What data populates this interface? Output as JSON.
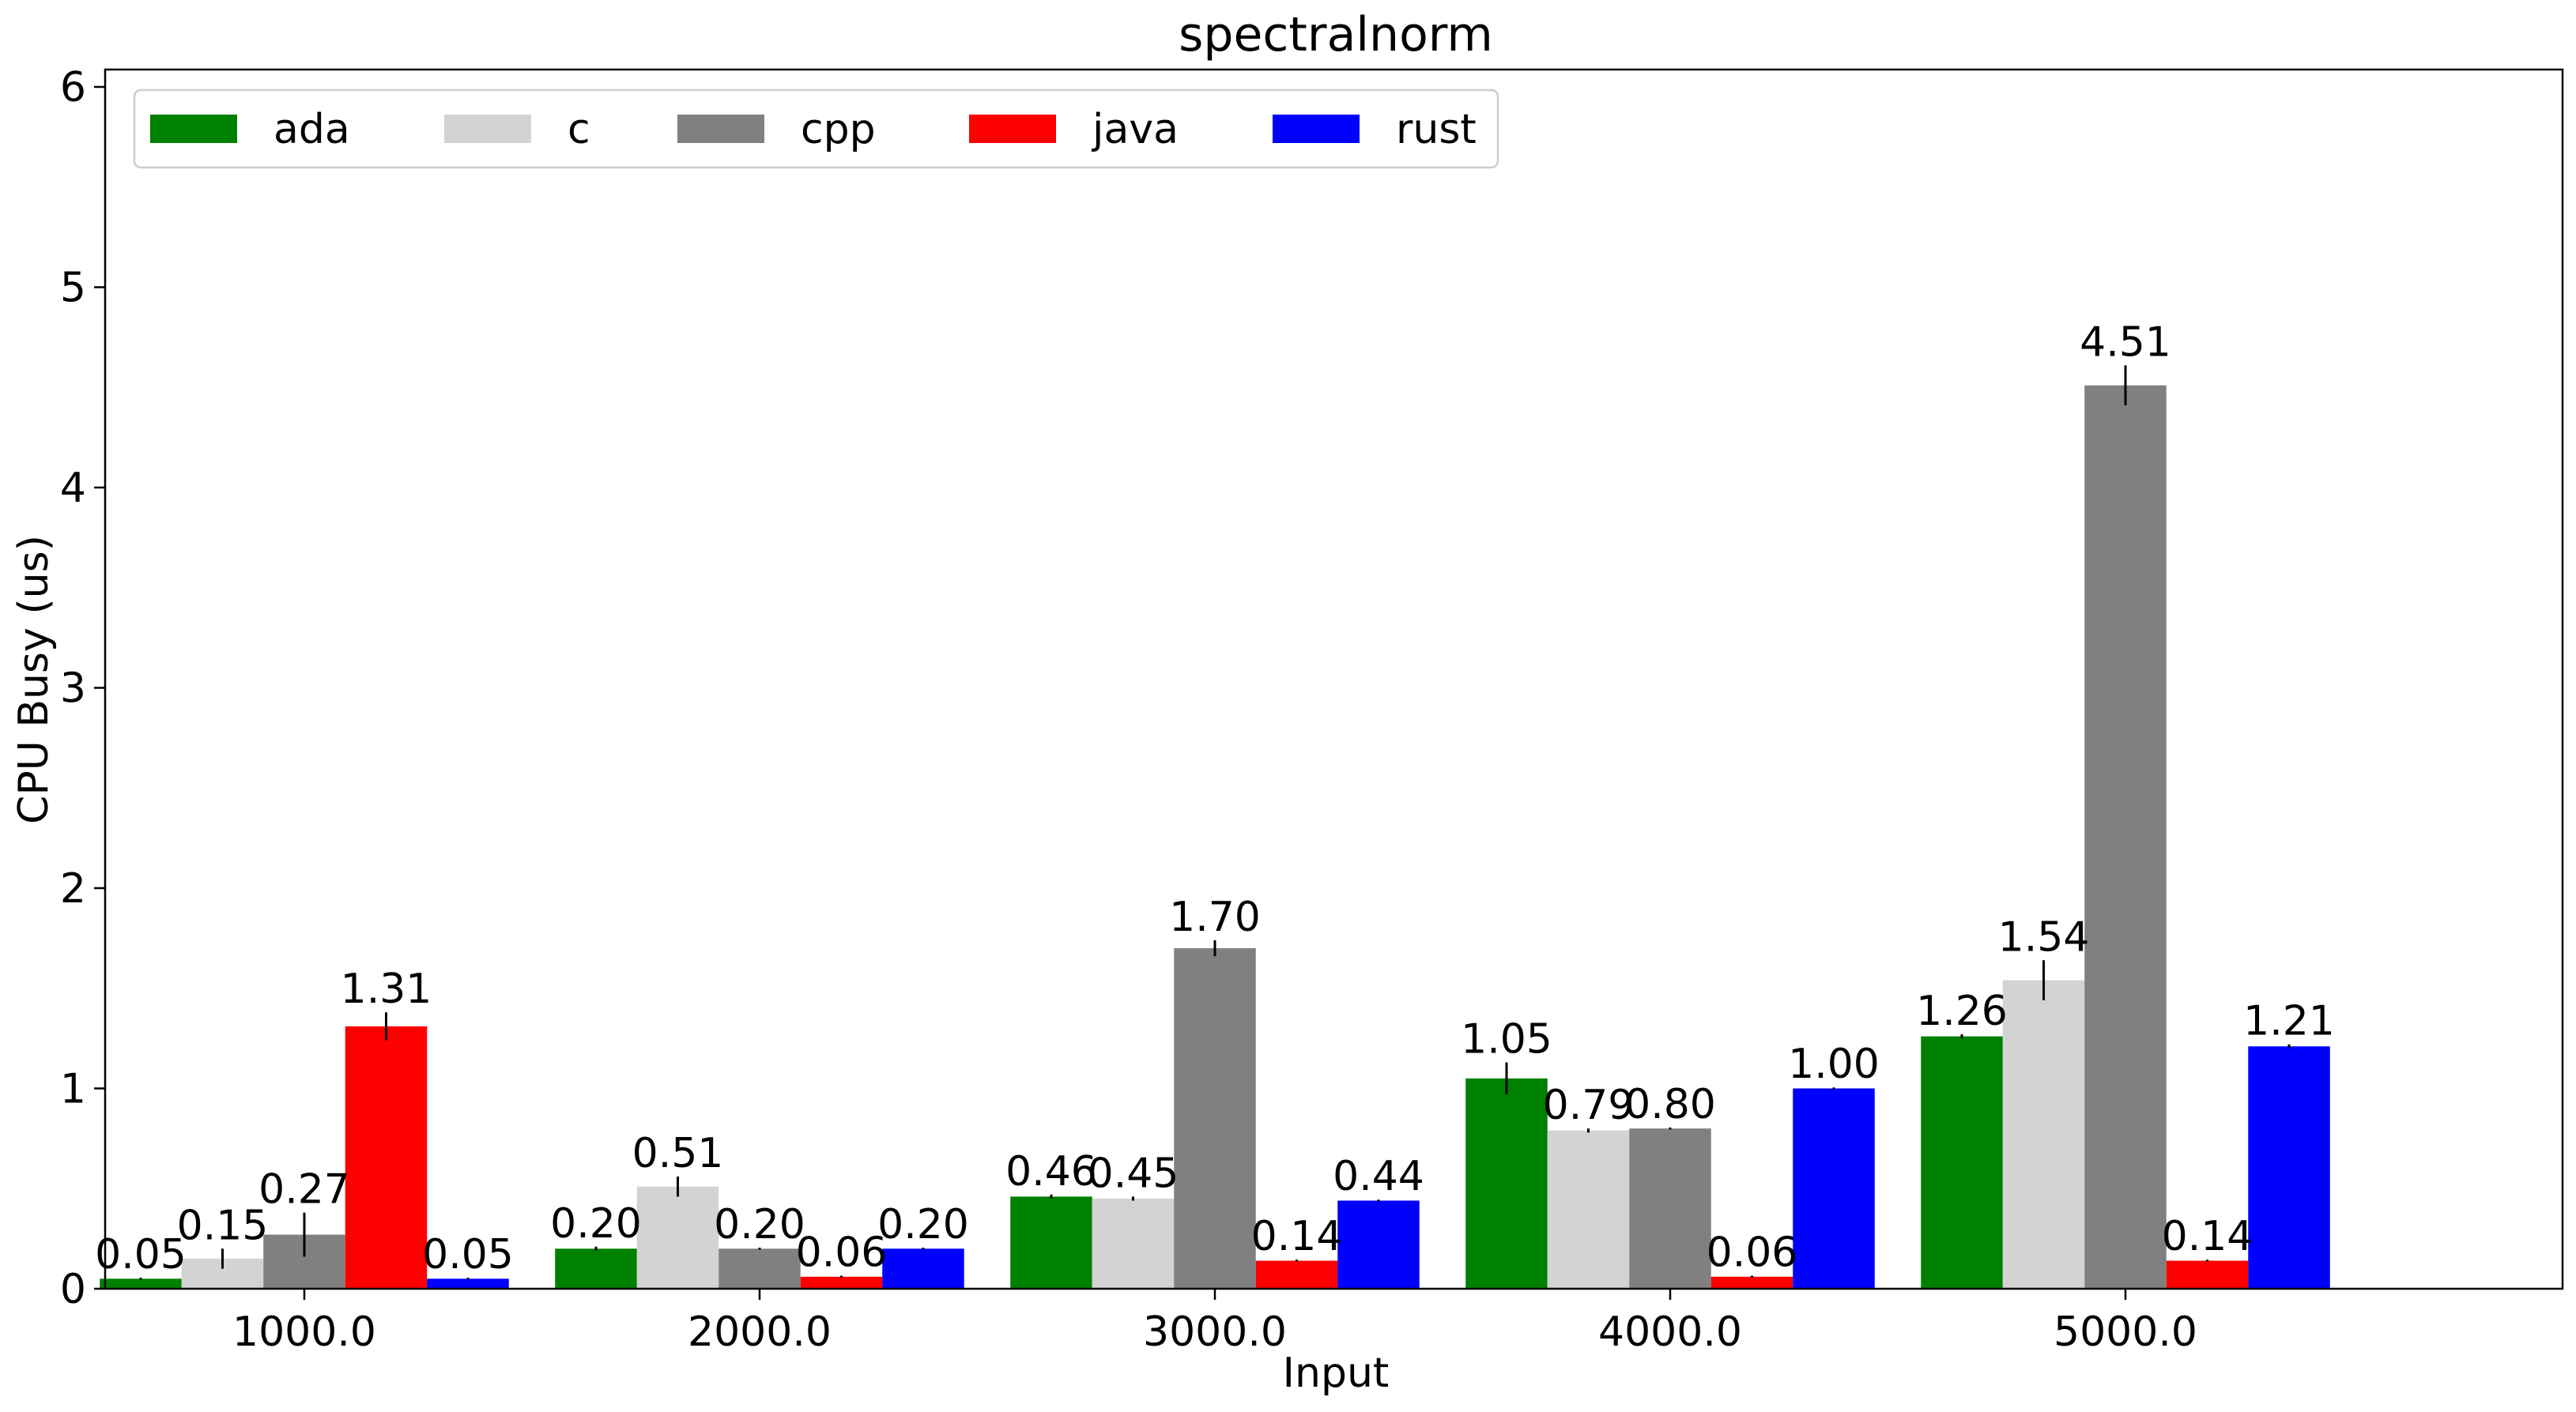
{
  "chart_data": {
    "type": "bar",
    "title": "spectralnorm",
    "xlabel": "Input",
    "ylabel": "CPU Busy (us)",
    "ylim": [
      0,
      6.1
    ],
    "yticks": [
      "0",
      "1",
      "2",
      "3",
      "4",
      "5",
      "6"
    ],
    "categories": [
      "1000.0",
      "2000.0",
      "3000.0",
      "4000.0",
      "5000.0"
    ],
    "legend_position": "top-left",
    "grid": false,
    "series": [
      {
        "name": "ada",
        "color": "#008000",
        "values": [
          0.05,
          0.2,
          0.46,
          1.05,
          1.26
        ],
        "labels": [
          "0.05",
          "0.20",
          "0.46",
          "1.05",
          "1.26"
        ],
        "errors": [
          0.005,
          0.01,
          0.01,
          0.08,
          0.01
        ]
      },
      {
        "name": "c",
        "color": "#d3d3d3",
        "values": [
          0.15,
          0.51,
          0.45,
          0.79,
          1.54
        ],
        "labels": [
          "0.15",
          "0.51",
          "0.45",
          "0.79",
          "1.54"
        ],
        "errors": [
          0.05,
          0.05,
          0.01,
          0.01,
          0.1
        ]
      },
      {
        "name": "cpp",
        "color": "#808080",
        "values": [
          0.27,
          0.2,
          1.7,
          0.8,
          4.51
        ],
        "labels": [
          "0.27",
          "0.20",
          "1.70",
          "0.80",
          "4.51"
        ],
        "errors": [
          0.11,
          0.005,
          0.04,
          0.005,
          0.1
        ]
      },
      {
        "name": "java",
        "color": "#ff0000",
        "values": [
          1.31,
          0.06,
          0.14,
          0.06,
          0.14
        ],
        "labels": [
          "1.31",
          "0.06",
          "0.14",
          "0.06",
          "0.14"
        ],
        "errors": [
          0.07,
          0.005,
          0.005,
          0.005,
          0.005
        ]
      },
      {
        "name": "rust",
        "color": "#0000ff",
        "values": [
          0.05,
          0.2,
          0.44,
          1.0,
          1.21
        ],
        "labels": [
          "0.05",
          "0.20",
          "0.44",
          "1.00",
          "1.21"
        ],
        "errors": [
          0.005,
          0.005,
          0.005,
          0.005,
          0.01
        ]
      }
    ]
  }
}
